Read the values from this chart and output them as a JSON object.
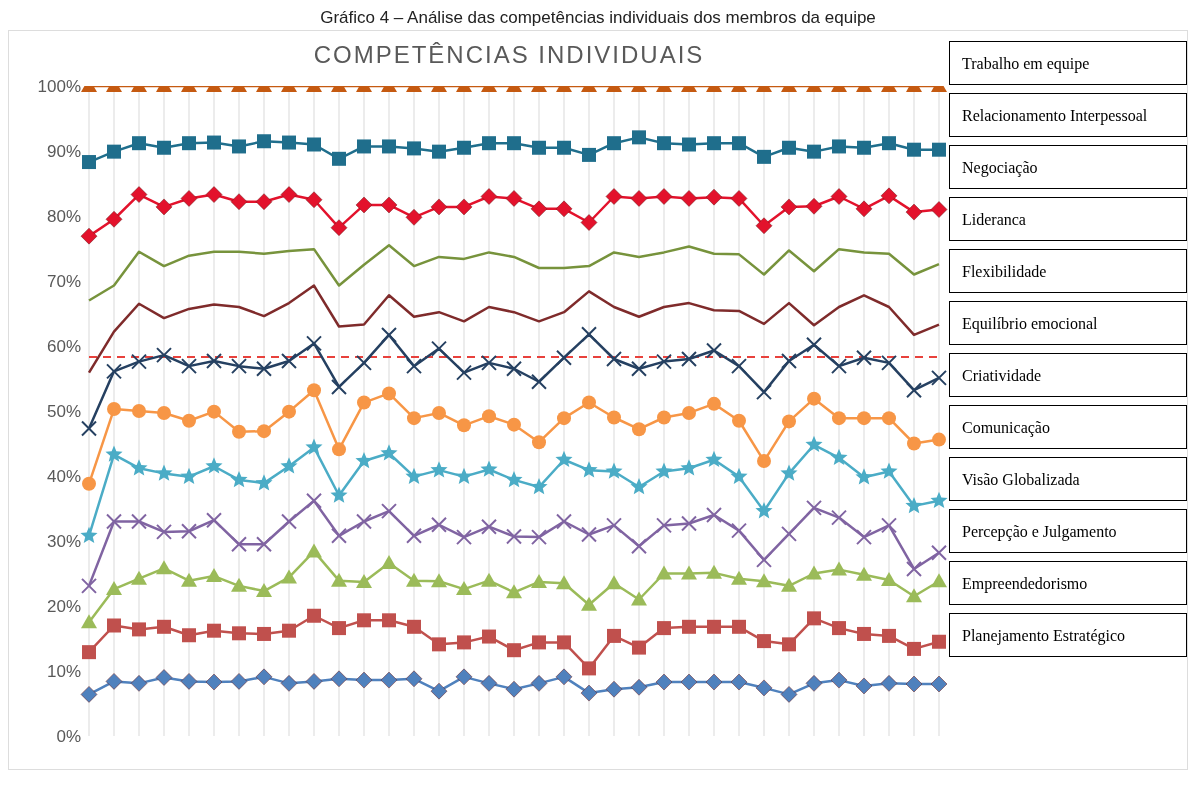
{
  "chart_data": {
    "type": "line",
    "title": "Gráfico 4 – Análise das competências individuais dos membros da equipe",
    "subtitle": "COMPETÊNCIAS INDIVIDUAIS",
    "categories": [
      null,
      null,
      null,
      null,
      null,
      null,
      null,
      null,
      null,
      null,
      null,
      null,
      null,
      null,
      null,
      null,
      null,
      null,
      null,
      null,
      null,
      null,
      null,
      null,
      null,
      null,
      null,
      null,
      null,
      null,
      null,
      null,
      null,
      null,
      null
    ],
    "ylim": [
      0,
      100
    ],
    "yticks": [
      {
        "value": 0,
        "label": "0%"
      },
      {
        "value": 10,
        "label": "10%"
      },
      {
        "value": 20,
        "label": "20%"
      },
      {
        "value": 30,
        "label": "30%"
      },
      {
        "value": 40,
        "label": "40%"
      },
      {
        "value": 50,
        "label": "50%"
      },
      {
        "value": 60,
        "label": "60%"
      },
      {
        "value": 70,
        "label": "70%"
      },
      {
        "value": 80,
        "label": "80%"
      },
      {
        "value": 90,
        "label": "90%"
      },
      {
        "value": 100,
        "label": "100%"
      }
    ],
    "grid": "x",
    "legend": "right",
    "tick_labels": "y",
    "ref_lines": [
      {
        "axis": "y",
        "value": 58.3,
        "color": "#e8413c",
        "line_style": "dashed"
      }
    ],
    "series": [
      {
        "name": "Trabalho em equipe",
        "color": "#c55a11",
        "marker": "triangle",
        "values": [
          100,
          100,
          100,
          100,
          100,
          100,
          100,
          100,
          100,
          100,
          100,
          100,
          100,
          100,
          100,
          100,
          100,
          100,
          100,
          100,
          100,
          100,
          100,
          100,
          100,
          100,
          100,
          100,
          100,
          100,
          100,
          100,
          100,
          100,
          100
        ]
      },
      {
        "name": "Relacionamento Interpessoal",
        "color": "#1f6e8c",
        "marker": "square",
        "values": [
          88.3,
          89.9,
          91.2,
          90.5,
          91.2,
          91.3,
          90.7,
          91.5,
          91.3,
          91.0,
          88.8,
          90.7,
          90.7,
          90.4,
          89.9,
          90.5,
          91.2,
          91.2,
          90.5,
          90.5,
          89.4,
          91.2,
          92.1,
          91.2,
          91.0,
          91.2,
          91.2,
          89.1,
          90.5,
          89.9,
          90.7,
          90.5,
          91.2,
          90.2,
          90.2
        ]
      },
      {
        "name": "Negociação",
        "color": "#e3122c",
        "marker": "diamond",
        "values": [
          76.9,
          79.5,
          83.3,
          81.4,
          82.7,
          83.3,
          82.2,
          82.2,
          83.3,
          82.5,
          78.2,
          81.7,
          81.7,
          79.8,
          81.4,
          81.4,
          83.0,
          82.7,
          81.1,
          81.1,
          79.0,
          83.0,
          82.7,
          83.0,
          82.7,
          82.9,
          82.7,
          78.5,
          81.4,
          81.5,
          83.0,
          81.1,
          83.1,
          80.6,
          81.0
        ]
      },
      {
        "name": "Lideranca",
        "color": "#77933c",
        "marker": "none",
        "values": [
          67.0,
          69.3,
          74.5,
          72.3,
          73.9,
          74.5,
          74.5,
          74.2,
          74.6,
          74.9,
          69.3,
          72.5,
          75.5,
          72.3,
          73.7,
          73.4,
          74.4,
          73.7,
          72.0,
          72.0,
          72.3,
          74.4,
          73.7,
          74.4,
          75.3,
          74.2,
          74.1,
          71.0,
          74.7,
          71.5,
          74.9,
          74.4,
          74.2,
          71.0,
          72.6
        ]
      },
      {
        "name": "Flexibilidade",
        "color": "#7f2b2b",
        "marker": "none",
        "values": [
          55.9,
          62.2,
          66.5,
          64.3,
          65.7,
          66.4,
          66.0,
          64.6,
          66.6,
          69.3,
          63.0,
          63.3,
          67.8,
          64.5,
          65.2,
          63.8,
          66.0,
          65.2,
          63.8,
          65.2,
          68.4,
          66.0,
          64.5,
          66.0,
          66.6,
          65.5,
          65.4,
          63.4,
          66.6,
          63.2,
          66.0,
          67.8,
          66.0,
          61.7,
          63.3
        ]
      },
      {
        "name": "Equilíbrio emocional",
        "color": "#254061",
        "marker": "cross",
        "values": [
          47.3,
          56.1,
          57.6,
          58.6,
          56.9,
          57.7,
          56.9,
          56.5,
          57.7,
          60.4,
          53.7,
          57.4,
          61.7,
          56.9,
          59.6,
          55.9,
          57.4,
          56.5,
          54.5,
          58.2,
          61.8,
          58.0,
          56.5,
          57.6,
          58.0,
          59.3,
          56.9,
          52.9,
          57.7,
          60.2,
          56.9,
          58.2,
          57.4,
          53.2,
          55.1
        ]
      },
      {
        "name": "Criatividade",
        "color": "#f79646",
        "marker": "circle",
        "values": [
          38.8,
          50.3,
          50.0,
          49.7,
          48.5,
          49.9,
          46.8,
          46.9,
          49.9,
          53.2,
          44.1,
          51.3,
          52.7,
          48.9,
          49.7,
          47.8,
          49.2,
          47.9,
          45.2,
          48.9,
          51.3,
          49.0,
          47.2,
          49.0,
          49.7,
          51.1,
          48.5,
          42.3,
          48.4,
          51.9,
          48.9,
          48.9,
          48.9,
          45.0,
          45.6
        ]
      },
      {
        "name": "Comunicação",
        "color": "#4bacc6",
        "marker": "star",
        "values": [
          30.8,
          43.3,
          41.2,
          40.4,
          39.9,
          41.5,
          39.4,
          38.9,
          41.5,
          44.4,
          37.0,
          42.3,
          43.5,
          39.9,
          40.9,
          39.9,
          41.0,
          39.4,
          38.3,
          42.5,
          40.9,
          40.7,
          38.3,
          40.7,
          41.2,
          42.5,
          39.9,
          34.6,
          40.4,
          44.8,
          42.8,
          39.8,
          40.7,
          35.4,
          36.2
        ]
      },
      {
        "name": "Visão Globalizada",
        "color": "#8064a2",
        "marker": "cross",
        "values": [
          23.1,
          33.0,
          33.0,
          31.4,
          31.5,
          33.2,
          29.5,
          29.5,
          33.0,
          36.2,
          30.8,
          33.0,
          34.6,
          30.8,
          32.5,
          30.6,
          32.2,
          30.7,
          30.6,
          33.0,
          31.0,
          32.4,
          29.2,
          32.4,
          32.7,
          34.0,
          31.6,
          27.1,
          31.1,
          35.1,
          33.6,
          30.6,
          32.4,
          25.7,
          28.2
        ]
      },
      {
        "name": "Percepção e Julgamento",
        "color": "#9bbb59",
        "marker": "triangle",
        "values": [
          17.5,
          22.6,
          24.2,
          25.8,
          23.9,
          24.6,
          23.1,
          22.3,
          24.4,
          28.4,
          23.9,
          23.7,
          26.6,
          23.9,
          23.8,
          22.6,
          23.9,
          22.1,
          23.7,
          23.5,
          20.2,
          23.5,
          21.0,
          25.0,
          25.0,
          25.1,
          24.2,
          23.8,
          23.1,
          25.0,
          25.6,
          24.8,
          24.0,
          21.5,
          23.8
        ]
      },
      {
        "name": "Empreendedorismo",
        "color": "#c0504d",
        "marker": "square",
        "values": [
          12.9,
          17.0,
          16.4,
          16.8,
          15.5,
          16.2,
          15.8,
          15.7,
          16.2,
          18.5,
          16.6,
          17.8,
          17.8,
          16.8,
          14.1,
          14.4,
          15.3,
          13.2,
          14.4,
          14.4,
          10.4,
          15.4,
          13.6,
          16.6,
          16.8,
          16.8,
          16.8,
          14.6,
          14.1,
          18.1,
          16.6,
          15.7,
          15.4,
          13.4,
          14.5
        ]
      },
      {
        "name": "Planejamento Estratégico",
        "color": "#4f81bd",
        "marker": "diamond",
        "values": [
          6.4,
          8.4,
          8.1,
          9.0,
          8.4,
          8.3,
          8.4,
          9.1,
          8.1,
          8.4,
          8.8,
          8.6,
          8.6,
          8.8,
          6.9,
          9.1,
          8.1,
          7.2,
          8.1,
          9.1,
          6.6,
          7.2,
          7.5,
          8.3,
          8.3,
          8.3,
          8.3,
          7.4,
          6.4,
          8.1,
          8.6,
          7.7,
          8.1,
          8.0,
          8.0
        ]
      }
    ]
  }
}
